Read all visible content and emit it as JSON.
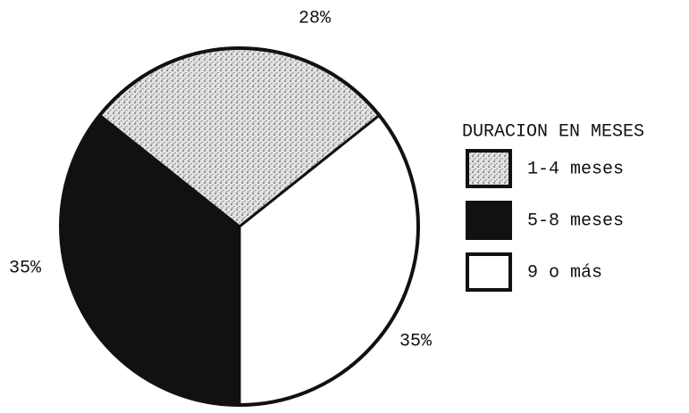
{
  "chart_data": {
    "type": "pie",
    "legend_title": "DURACION EN MESES",
    "categories": [
      "1-4 meses",
      "5-8 meses",
      "9 o más"
    ],
    "values": [
      28,
      35,
      35
    ],
    "value_labels": [
      "28%",
      "35%",
      "35%"
    ],
    "colors": [
      "#d9d9d9",
      "#111111",
      "#ffffff"
    ],
    "legend": "right"
  }
}
